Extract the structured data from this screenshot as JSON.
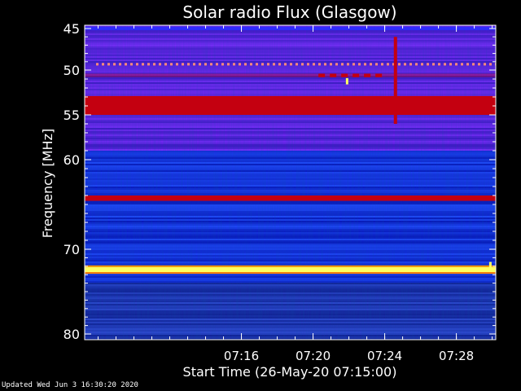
{
  "chart_data": {
    "type": "heatmap",
    "title": "Solar radio Flux (Glasgow)",
    "xlabel": "Start Time (26-May-20 07:15:00)",
    "ylabel_main": "Frequency ",
    "ylabel_unit": "MHz",
    "x_range_minutes": [
      7.25,
      30.2
    ],
    "x_ticks": [
      {
        "label": "07:16",
        "minute": 16
      },
      {
        "label": "07:20",
        "minute": 20
      },
      {
        "label": "07:24",
        "minute": 24
      },
      {
        "label": "07:28",
        "minute": 28
      }
    ],
    "ylim": [
      45,
      80
    ],
    "y_ticks": [
      {
        "label": "45",
        "value": 45
      },
      {
        "label": "50",
        "value": 50
      },
      {
        "label": "55",
        "value": 55
      },
      {
        "label": "60",
        "value": 60
      },
      {
        "label": "70",
        "value": 70
      },
      {
        "label": "80",
        "value": 80
      }
    ],
    "bands": [
      {
        "freq": 45.0,
        "width": 0.4,
        "level": "medium"
      },
      {
        "freq": 49.3,
        "width": 0.3,
        "level": "dotted"
      },
      {
        "freq": 50.6,
        "width": 0.4,
        "level": "dashed"
      },
      {
        "freq": 53.6,
        "width": 1.4,
        "level": "high"
      },
      {
        "freq": 54.6,
        "width": 0.8,
        "level": "high"
      },
      {
        "freq": 64.3,
        "width": 0.6,
        "level": "high"
      },
      {
        "freq": 72.4,
        "width": 0.6,
        "level": "saturated"
      }
    ],
    "bursts": [
      {
        "minute": 24.6,
        "freq_from": 46.0,
        "freq_to": 56.0,
        "level": "high"
      },
      {
        "minute": 21.9,
        "freq_from": 50.9,
        "freq_to": 51.6,
        "level": "saturated"
      },
      {
        "minute": 29.9,
        "freq_from": 71.5,
        "freq_to": 72.2,
        "level": "saturated"
      }
    ],
    "colors": {
      "background": "#000000",
      "low": "#0a00a0",
      "medium": "#2a2cff",
      "high": "#c40010",
      "saturated": "#ffff60"
    }
  },
  "footer": {
    "updated": "Updated Wed Jun  3 16:30:20 2020"
  }
}
